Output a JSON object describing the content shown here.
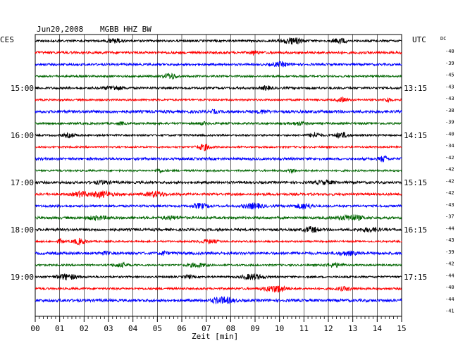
{
  "header": {
    "date": "Jun20,2008",
    "station": "MGBB HHZ BW",
    "left_tz": "CES",
    "right_tz": "UTC",
    "dc_label": "DC"
  },
  "chart_data": {
    "type": "line",
    "title": "Jun20,2008   MGBB HHZ BW",
    "xlabel": "Zeit [min]",
    "xlim": [
      0,
      15
    ],
    "x_ticks": [
      "00",
      "01",
      "02",
      "03",
      "04",
      "05",
      "06",
      "07",
      "08",
      "09",
      "10",
      "11",
      "12",
      "13",
      "14",
      "15"
    ],
    "left_hour_labels": [
      "15:00",
      "16:00",
      "17:00",
      "18:00",
      "19:00"
    ],
    "right_hour_labels": [
      "13:15",
      "14:15",
      "15:15",
      "16:15",
      "17:15"
    ],
    "dc_offsets": [
      "-40",
      "-39",
      "-45",
      "-43",
      "-43",
      "-38",
      "-39",
      "-40",
      "-34",
      "-42",
      "-42",
      "-42",
      "-42",
      "-43",
      "-37",
      "-44",
      "-43",
      "-39",
      "-42",
      "-44",
      "-40",
      "-44",
      "-41"
    ],
    "trace_colors": [
      "#000000",
      "#ff0000",
      "#0000ff",
      "#006600"
    ],
    "trace_count": 23,
    "trace_interval_min": 15,
    "grid": true
  }
}
